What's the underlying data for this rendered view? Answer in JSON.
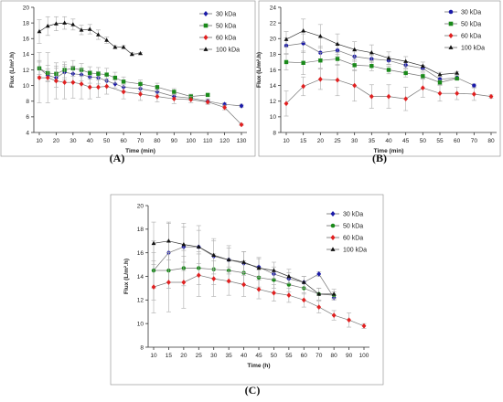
{
  "chart_data": [
    {
      "panel": "(A)",
      "type": "line",
      "xlabel": "Time (min)",
      "ylabel": "Flux (L/m².h)",
      "x_ticks": [
        10,
        20,
        30,
        40,
        50,
        60,
        70,
        80,
        90,
        100,
        110,
        120,
        130
      ],
      "ylim": [
        4,
        20
      ],
      "y_ticks": [
        4,
        6,
        8,
        10,
        12,
        14,
        16,
        18,
        20
      ],
      "legend": "top-right",
      "series": [
        {
          "name": "30 kDa",
          "color": "#1a1aa8",
          "marker": "diamond",
          "points": [
            [
              10,
              12.2,
              0.8
            ],
            [
              15,
              11.3,
              0.8
            ],
            [
              20,
              11.0,
              1.2
            ],
            [
              25,
              11.7,
              1.0
            ],
            [
              30,
              11.5,
              1.0
            ],
            [
              35,
              11.4,
              0.8
            ],
            [
              40,
              11.1,
              0.8
            ],
            [
              45,
              11.0,
              0.8
            ],
            [
              50,
              10.6,
              0.7
            ],
            [
              55,
              10.2,
              0.5
            ],
            [
              60,
              9.8,
              0.5
            ],
            [
              70,
              9.6,
              0.4
            ],
            [
              80,
              9.2,
              0.3
            ],
            [
              90,
              8.6,
              0.3
            ],
            [
              100,
              8.4,
              0.3
            ],
            [
              110,
              8.0,
              0.3
            ],
            [
              120,
              7.6,
              0.2
            ],
            [
              130,
              7.4,
              0.2
            ]
          ]
        },
        {
          "name": "50 kDa",
          "color": "#1a8a1a",
          "marker": "square",
          "points": [
            [
              10,
              12.2,
              1.0
            ],
            [
              15,
              11.6,
              1.0
            ],
            [
              20,
              11.5,
              1.0
            ],
            [
              25,
              12.0,
              1.0
            ],
            [
              30,
              12.2,
              1.0
            ],
            [
              35,
              12.0,
              0.8
            ],
            [
              40,
              11.6,
              0.8
            ],
            [
              45,
              11.5,
              0.8
            ],
            [
              50,
              11.4,
              0.8
            ],
            [
              55,
              11.0,
              0.7
            ],
            [
              60,
              10.5,
              0.6
            ],
            [
              70,
              10.2,
              0.5
            ],
            [
              80,
              9.8,
              0.5
            ],
            [
              90,
              9.2,
              0.4
            ],
            [
              100,
              8.6,
              0.3
            ],
            [
              110,
              8.8,
              0.2
            ]
          ]
        },
        {
          "name": "60 kDa",
          "color": "#e02020",
          "marker": "diamond",
          "points": [
            [
              10,
              11.0,
              3.2
            ],
            [
              15,
              11.0,
              3.2
            ],
            [
              20,
              10.6,
              2.3
            ],
            [
              25,
              10.4,
              2.1
            ],
            [
              30,
              10.4,
              2.0
            ],
            [
              35,
              10.2,
              1.9
            ],
            [
              40,
              9.8,
              1.5
            ],
            [
              45,
              9.8,
              1.3
            ],
            [
              50,
              9.9,
              1.0
            ],
            [
              60,
              9.2,
              0.9
            ],
            [
              70,
              8.9,
              0.8
            ],
            [
              80,
              8.6,
              0.7
            ],
            [
              90,
              8.3,
              0.6
            ],
            [
              100,
              8.2,
              0.4
            ],
            [
              110,
              7.9,
              0.3
            ],
            [
              120,
              7.2,
              0.3
            ],
            [
              130,
              5.0,
              0.1
            ]
          ]
        },
        {
          "name": "100 kDa",
          "color": "#111111",
          "marker": "triangle",
          "points": [
            [
              10,
              16.9,
              1.5
            ],
            [
              15,
              17.6,
              1.2
            ],
            [
              20,
              17.9,
              0.9
            ],
            [
              25,
              18.0,
              0.8
            ],
            [
              30,
              17.8,
              0.7
            ],
            [
              35,
              17.1,
              0.6
            ],
            [
              40,
              17.2,
              0.6
            ],
            [
              45,
              16.5,
              0.6
            ],
            [
              50,
              15.8,
              0.4
            ],
            [
              55,
              14.9,
              0.2
            ],
            [
              60,
              14.9,
              0.2
            ],
            [
              65,
              14.0,
              0.2
            ],
            [
              70,
              14.1,
              0.1
            ]
          ]
        }
      ]
    },
    {
      "panel": "(B)",
      "type": "line",
      "xlabel": "Time (min)",
      "ylabel": "Flux (L/m².h)",
      "x_ticks": [
        10,
        15,
        20,
        25,
        30,
        35,
        40,
        45,
        50,
        55,
        60,
        70,
        80
      ],
      "ylim": [
        8,
        24
      ],
      "y_ticks": [
        8,
        10,
        12,
        14,
        16,
        18,
        20,
        22,
        24
      ],
      "legend": "top-right",
      "series": [
        {
          "name": "30 kDa",
          "color": "#1a1aa8",
          "marker": "circle",
          "points": [
            [
              10,
              19.1,
              1.0
            ],
            [
              15,
              19.4,
              1.2
            ],
            [
              20,
              18.2,
              0.8
            ],
            [
              25,
              18.5,
              0.8
            ],
            [
              30,
              17.7,
              0.6
            ],
            [
              35,
              17.4,
              0.5
            ],
            [
              40,
              17.2,
              0.5
            ],
            [
              45,
              16.6,
              0.4
            ],
            [
              50,
              16.2,
              0.4
            ],
            [
              55,
              14.8,
              0.3
            ],
            [
              60,
              15.0,
              0.3
            ],
            [
              70,
              14.0,
              0.2
            ]
          ]
        },
        {
          "name": "50 kDa",
          "color": "#1a8a1a",
          "marker": "square",
          "points": [
            [
              10,
              17.0,
              1.0
            ],
            [
              15,
              16.9,
              1.5
            ],
            [
              20,
              17.2,
              1.0
            ],
            [
              25,
              17.4,
              0.8
            ],
            [
              30,
              16.6,
              0.7
            ],
            [
              35,
              16.5,
              0.6
            ],
            [
              40,
              16.0,
              0.5
            ],
            [
              45,
              15.6,
              0.5
            ],
            [
              50,
              15.2,
              0.4
            ],
            [
              55,
              14.4,
              0.3
            ],
            [
              60,
              14.9,
              0.2
            ]
          ]
        },
        {
          "name": "60 kDa",
          "color": "#e02020",
          "marker": "diamond",
          "points": [
            [
              10,
              11.7,
              1.6
            ],
            [
              15,
              13.9,
              1.2
            ],
            [
              20,
              14.8,
              1.3
            ],
            [
              25,
              14.7,
              2.0
            ],
            [
              30,
              14.0,
              2.0
            ],
            [
              35,
              12.6,
              1.5
            ],
            [
              40,
              12.6,
              1.5
            ],
            [
              45,
              12.3,
              1.5
            ],
            [
              50,
              13.7,
              1.2
            ],
            [
              55,
              13.0,
              1.0
            ],
            [
              60,
              13.0,
              0.8
            ],
            [
              70,
              12.9,
              0.8
            ],
            [
              80,
              12.6,
              0.2
            ]
          ]
        },
        {
          "name": "100 kDa",
          "color": "#111111",
          "marker": "triangle",
          "points": [
            [
              10,
              19.9,
              1.0
            ],
            [
              15,
              21.0,
              1.5
            ],
            [
              20,
              20.3,
              1.5
            ],
            [
              25,
              19.3,
              1.3
            ],
            [
              30,
              18.6,
              1.0
            ],
            [
              35,
              18.2,
              1.0
            ],
            [
              40,
              17.5,
              0.8
            ],
            [
              45,
              17.1,
              0.6
            ],
            [
              50,
              16.5,
              0.5
            ],
            [
              55,
              15.4,
              0.3
            ],
            [
              60,
              15.6,
              0.2
            ]
          ]
        }
      ]
    },
    {
      "panel": "(C)",
      "type": "line",
      "xlabel": "Time (h)",
      "ylabel": "Flux (L/m².h)",
      "x_ticks": [
        10,
        15,
        20,
        25,
        30,
        35,
        40,
        45,
        50,
        55,
        60,
        70,
        80,
        90,
        100
      ],
      "ylim": [
        8,
        20
      ],
      "y_ticks": [
        8,
        10,
        12,
        14,
        16,
        18,
        20
      ],
      "legend": "top-right",
      "series": [
        {
          "name": "30 kDa",
          "color": "#1a1aa8",
          "marker": "diamond",
          "points": [
            [
              10,
              14.5,
              2.5
            ],
            [
              15,
              16.0,
              2.5
            ],
            [
              20,
              16.5,
              2.0
            ],
            [
              25,
              16.5,
              1.8
            ],
            [
              30,
              15.7,
              1.5
            ],
            [
              35,
              15.4,
              1.2
            ],
            [
              40,
              15.1,
              1.0
            ],
            [
              45,
              14.8,
              0.8
            ],
            [
              50,
              14.2,
              0.6
            ],
            [
              55,
              13.8,
              0.5
            ],
            [
              60,
              13.5,
              0.5
            ],
            [
              70,
              14.2,
              0.2
            ],
            [
              80,
              12.2,
              0.2
            ]
          ]
        },
        {
          "name": "50 kDa",
          "color": "#1a8a1a",
          "marker": "circle",
          "points": [
            [
              10,
              14.5,
              1.5
            ],
            [
              15,
              14.5,
              1.5
            ],
            [
              20,
              14.7,
              1.5
            ],
            [
              25,
              14.7,
              1.4
            ],
            [
              30,
              14.6,
              1.3
            ],
            [
              35,
              14.5,
              1.0
            ],
            [
              40,
              14.3,
              1.0
            ],
            [
              45,
              13.9,
              0.8
            ],
            [
              50,
              13.7,
              0.7
            ],
            [
              55,
              13.3,
              0.6
            ],
            [
              60,
              13.0,
              0.5
            ],
            [
              70,
              12.5,
              0.5
            ],
            [
              80,
              12.4,
              0.3
            ]
          ]
        },
        {
          "name": "60 kDa",
          "color": "#e02020",
          "marker": "diamond",
          "points": [
            [
              10,
              13.1,
              2.2
            ],
            [
              15,
              13.5,
              2.5
            ],
            [
              20,
              13.5,
              2.2
            ],
            [
              25,
              14.1,
              1.8
            ],
            [
              30,
              13.8,
              1.5
            ],
            [
              35,
              13.6,
              1.2
            ],
            [
              40,
              13.3,
              1.0
            ],
            [
              45,
              12.9,
              0.8
            ],
            [
              50,
              12.6,
              0.7
            ],
            [
              55,
              12.4,
              0.6
            ],
            [
              60,
              12.0,
              0.6
            ],
            [
              70,
              11.4,
              0.5
            ],
            [
              80,
              10.7,
              0.4
            ],
            [
              90,
              10.3,
              0.6
            ],
            [
              100,
              9.8,
              0.2
            ]
          ]
        },
        {
          "name": "100 kDa",
          "color": "#111111",
          "marker": "triangle",
          "points": [
            [
              10,
              16.8,
              1.8
            ],
            [
              15,
              17.0,
              1.6
            ],
            [
              20,
              16.7,
              1.5
            ],
            [
              25,
              16.5,
              1.4
            ],
            [
              30,
              15.8,
              1.2
            ],
            [
              35,
              15.4,
              1.0
            ],
            [
              40,
              15.2,
              0.9
            ],
            [
              45,
              14.7,
              0.8
            ],
            [
              50,
              14.5,
              0.7
            ],
            [
              55,
              14.0,
              0.6
            ],
            [
              60,
              13.5,
              0.5
            ],
            [
              70,
              12.5,
              0.5
            ],
            [
              80,
              12.5,
              0.4
            ]
          ]
        }
      ]
    }
  ]
}
